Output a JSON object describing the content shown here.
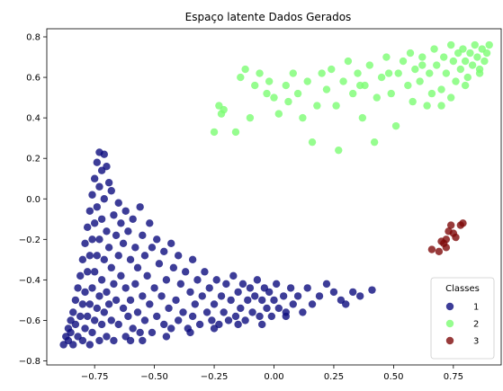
{
  "chart_data": {
    "type": "scatter",
    "title": "Espaço latente Dados Gerados",
    "xlabel": "",
    "ylabel": "",
    "xlim": [
      -0.95,
      0.95
    ],
    "ylim": [
      -0.82,
      0.84
    ],
    "x_ticks": [
      -0.75,
      -0.5,
      -0.25,
      0.0,
      0.25,
      0.5,
      0.75
    ],
    "x_tick_labels": [
      "−0.75",
      "−0.50",
      "−0.25",
      "0.00",
      "0.25",
      "0.50",
      "0.75"
    ],
    "y_ticks": [
      -0.8,
      -0.6,
      -0.4,
      -0.2,
      0.0,
      0.2,
      0.4,
      0.6,
      0.8
    ],
    "y_tick_labels": [
      "−0.8",
      "−0.6",
      "−0.4",
      "−0.2",
      "0.0",
      "0.2",
      "0.4",
      "0.6",
      "0.8"
    ],
    "grid": false,
    "legend": {
      "title": "Classes",
      "placement": "lower-right"
    },
    "series": [
      {
        "name": "1",
        "color": "#0d0d7e",
        "points": [
          [
            -0.88,
            -0.72
          ],
          [
            -0.87,
            -0.68
          ],
          [
            -0.86,
            -0.64
          ],
          [
            -0.86,
            -0.7
          ],
          [
            -0.85,
            -0.6
          ],
          [
            -0.85,
            -0.66
          ],
          [
            -0.84,
            -0.56
          ],
          [
            -0.84,
            -0.72
          ],
          [
            -0.83,
            -0.5
          ],
          [
            -0.83,
            -0.62
          ],
          [
            -0.82,
            -0.44
          ],
          [
            -0.82,
            -0.68
          ],
          [
            -0.81,
            -0.38
          ],
          [
            -0.81,
            -0.58
          ],
          [
            -0.8,
            -0.3
          ],
          [
            -0.8,
            -0.52
          ],
          [
            -0.8,
            -0.7
          ],
          [
            -0.79,
            -0.22
          ],
          [
            -0.79,
            -0.46
          ],
          [
            -0.79,
            -0.64
          ],
          [
            -0.78,
            -0.14
          ],
          [
            -0.78,
            -0.36
          ],
          [
            -0.78,
            -0.58
          ],
          [
            -0.77,
            -0.06
          ],
          [
            -0.77,
            -0.28
          ],
          [
            -0.77,
            -0.52
          ],
          [
            -0.77,
            -0.72
          ],
          [
            -0.76,
            0.02
          ],
          [
            -0.76,
            -0.2
          ],
          [
            -0.76,
            -0.44
          ],
          [
            -0.76,
            -0.66
          ],
          [
            -0.75,
            0.1
          ],
          [
            -0.75,
            -0.12
          ],
          [
            -0.75,
            -0.36
          ],
          [
            -0.75,
            -0.6
          ],
          [
            -0.74,
            0.18
          ],
          [
            -0.74,
            -0.04
          ],
          [
            -0.74,
            -0.28
          ],
          [
            -0.74,
            -0.54
          ],
          [
            -0.73,
            0.23
          ],
          [
            -0.73,
            0.06
          ],
          [
            -0.73,
            -0.2
          ],
          [
            -0.73,
            -0.48
          ],
          [
            -0.73,
            -0.7
          ],
          [
            -0.72,
            0.14
          ],
          [
            -0.72,
            -0.1
          ],
          [
            -0.72,
            -0.4
          ],
          [
            -0.72,
            -0.62
          ],
          [
            -0.71,
            0.22
          ],
          [
            -0.71,
            0.0
          ],
          [
            -0.71,
            -0.3
          ],
          [
            -0.71,
            -0.56
          ],
          [
            -0.7,
            0.16
          ],
          [
            -0.7,
            -0.16
          ],
          [
            -0.7,
            -0.46
          ],
          [
            -0.7,
            -0.68
          ],
          [
            -0.69,
            0.08
          ],
          [
            -0.69,
            -0.24
          ],
          [
            -0.69,
            -0.52
          ],
          [
            -0.68,
            0.04
          ],
          [
            -0.68,
            -0.34
          ],
          [
            -0.68,
            -0.6
          ],
          [
            -0.67,
            -0.08
          ],
          [
            -0.67,
            -0.42
          ],
          [
            -0.67,
            -0.7
          ],
          [
            -0.66,
            -0.18
          ],
          [
            -0.66,
            -0.5
          ],
          [
            -0.65,
            -0.02
          ],
          [
            -0.65,
            -0.28
          ],
          [
            -0.65,
            -0.62
          ],
          [
            -0.64,
            -0.12
          ],
          [
            -0.64,
            -0.38
          ],
          [
            -0.63,
            -0.22
          ],
          [
            -0.63,
            -0.54
          ],
          [
            -0.62,
            -0.06
          ],
          [
            -0.62,
            -0.44
          ],
          [
            -0.62,
            -0.68
          ],
          [
            -0.61,
            -0.16
          ],
          [
            -0.61,
            -0.58
          ],
          [
            -0.6,
            -0.3
          ],
          [
            -0.6,
            -0.5
          ],
          [
            -0.59,
            -0.1
          ],
          [
            -0.59,
            -0.64
          ],
          [
            -0.58,
            -0.24
          ],
          [
            -0.58,
            -0.42
          ],
          [
            -0.57,
            -0.34
          ],
          [
            -0.57,
            -0.56
          ],
          [
            -0.56,
            -0.04
          ],
          [
            -0.56,
            -0.66
          ],
          [
            -0.55,
            -0.18
          ],
          [
            -0.55,
            -0.48
          ],
          [
            -0.54,
            -0.28
          ],
          [
            -0.54,
            -0.6
          ],
          [
            -0.53,
            -0.38
          ],
          [
            -0.52,
            -0.12
          ],
          [
            -0.52,
            -0.52
          ],
          [
            -0.51,
            -0.24
          ],
          [
            -0.51,
            -0.66
          ],
          [
            -0.5,
            -0.44
          ],
          [
            -0.49,
            -0.2
          ],
          [
            -0.49,
            -0.58
          ],
          [
            -0.48,
            -0.32
          ],
          [
            -0.47,
            -0.48
          ],
          [
            -0.46,
            -0.26
          ],
          [
            -0.46,
            -0.62
          ],
          [
            -0.45,
            -0.4
          ],
          [
            -0.44,
            -0.54
          ],
          [
            -0.43,
            -0.22
          ],
          [
            -0.43,
            -0.64
          ],
          [
            -0.42,
            -0.34
          ],
          [
            -0.41,
            -0.5
          ],
          [
            -0.4,
            -0.28
          ],
          [
            -0.4,
            -0.6
          ],
          [
            -0.39,
            -0.42
          ],
          [
            -0.38,
            -0.56
          ],
          [
            -0.37,
            -0.36
          ],
          [
            -0.36,
            -0.64
          ],
          [
            -0.35,
            -0.46
          ],
          [
            -0.34,
            -0.3
          ],
          [
            -0.34,
            -0.58
          ],
          [
            -0.33,
            -0.52
          ],
          [
            -0.32,
            -0.4
          ],
          [
            -0.31,
            -0.62
          ],
          [
            -0.3,
            -0.48
          ],
          [
            -0.29,
            -0.36
          ],
          [
            -0.28,
            -0.56
          ],
          [
            -0.27,
            -0.44
          ],
          [
            -0.26,
            -0.6
          ],
          [
            -0.25,
            -0.52
          ],
          [
            -0.24,
            -0.4
          ],
          [
            -0.23,
            -0.62
          ],
          [
            -0.22,
            -0.48
          ],
          [
            -0.21,
            -0.56
          ],
          [
            -0.2,
            -0.42
          ],
          [
            -0.19,
            -0.6
          ],
          [
            -0.18,
            -0.5
          ],
          [
            -0.17,
            -0.38
          ],
          [
            -0.16,
            -0.58
          ],
          [
            -0.15,
            -0.46
          ],
          [
            -0.14,
            -0.54
          ],
          [
            -0.13,
            -0.42
          ],
          [
            -0.12,
            -0.6
          ],
          [
            -0.11,
            -0.5
          ],
          [
            -0.1,
            -0.44
          ],
          [
            -0.09,
            -0.56
          ],
          [
            -0.08,
            -0.48
          ],
          [
            -0.07,
            -0.4
          ],
          [
            -0.06,
            -0.58
          ],
          [
            -0.05,
            -0.5
          ],
          [
            -0.04,
            -0.44
          ],
          [
            -0.03,
            -0.54
          ],
          [
            -0.02,
            -0.46
          ],
          [
            -0.01,
            -0.58
          ],
          [
            0.0,
            -0.5
          ],
          [
            0.01,
            -0.42
          ],
          [
            0.02,
            -0.54
          ],
          [
            0.04,
            -0.48
          ],
          [
            0.05,
            -0.56
          ],
          [
            0.07,
            -0.44
          ],
          [
            0.08,
            -0.52
          ],
          [
            0.1,
            -0.48
          ],
          [
            0.12,
            -0.56
          ],
          [
            0.14,
            -0.44
          ],
          [
            0.16,
            -0.52
          ],
          [
            0.19,
            -0.48
          ],
          [
            0.22,
            -0.42
          ],
          [
            0.25,
            -0.46
          ],
          [
            0.28,
            -0.5
          ],
          [
            0.3,
            -0.52
          ],
          [
            0.33,
            -0.46
          ],
          [
            0.36,
            -0.48
          ],
          [
            0.41,
            -0.45
          ],
          [
            -0.6,
            -0.7
          ],
          [
            -0.55,
            -0.7
          ],
          [
            -0.45,
            -0.68
          ],
          [
            -0.35,
            -0.66
          ],
          [
            -0.25,
            -0.64
          ],
          [
            -0.15,
            -0.62
          ],
          [
            -0.05,
            -0.62
          ],
          [
            0.05,
            -0.58
          ]
        ]
      },
      {
        "name": "2",
        "color": "#7cfc73",
        "points": [
          [
            -0.25,
            0.33
          ],
          [
            -0.23,
            0.46
          ],
          [
            -0.22,
            0.42
          ],
          [
            -0.21,
            0.44
          ],
          [
            -0.16,
            0.33
          ],
          [
            -0.14,
            0.6
          ],
          [
            -0.12,
            0.64
          ],
          [
            -0.1,
            0.4
          ],
          [
            -0.08,
            0.56
          ],
          [
            -0.03,
            0.52
          ],
          [
            -0.02,
            0.58
          ],
          [
            0.0,
            0.5
          ],
          [
            0.02,
            0.42
          ],
          [
            0.05,
            0.56
          ],
          [
            0.08,
            0.62
          ],
          [
            0.1,
            0.52
          ],
          [
            0.12,
            0.4
          ],
          [
            0.14,
            0.58
          ],
          [
            0.16,
            0.28
          ],
          [
            0.18,
            0.46
          ],
          [
            0.2,
            0.62
          ],
          [
            0.22,
            0.54
          ],
          [
            0.24,
            0.64
          ],
          [
            0.26,
            0.46
          ],
          [
            0.27,
            0.24
          ],
          [
            0.29,
            0.58
          ],
          [
            0.31,
            0.68
          ],
          [
            0.33,
            0.52
          ],
          [
            0.35,
            0.62
          ],
          [
            0.37,
            0.4
          ],
          [
            0.38,
            0.56
          ],
          [
            0.4,
            0.66
          ],
          [
            0.42,
            0.28
          ],
          [
            0.43,
            0.5
          ],
          [
            0.45,
            0.6
          ],
          [
            0.47,
            0.7
          ],
          [
            0.49,
            0.52
          ],
          [
            0.51,
            0.36
          ],
          [
            0.52,
            0.62
          ],
          [
            0.54,
            0.68
          ],
          [
            0.56,
            0.56
          ],
          [
            0.57,
            0.72
          ],
          [
            0.59,
            0.64
          ],
          [
            0.61,
            0.58
          ],
          [
            0.62,
            0.7
          ],
          [
            0.64,
            0.46
          ],
          [
            0.65,
            0.62
          ],
          [
            0.67,
            0.74
          ],
          [
            0.68,
            0.66
          ],
          [
            0.7,
            0.54
          ],
          [
            0.71,
            0.7
          ],
          [
            0.72,
            0.62
          ],
          [
            0.74,
            0.76
          ],
          [
            0.75,
            0.68
          ],
          [
            0.76,
            0.58
          ],
          [
            0.77,
            0.72
          ],
          [
            0.78,
            0.64
          ],
          [
            0.79,
            0.74
          ],
          [
            0.8,
            0.68
          ],
          [
            0.81,
            0.6
          ],
          [
            0.82,
            0.72
          ],
          [
            0.83,
            0.66
          ],
          [
            0.84,
            0.76
          ],
          [
            0.85,
            0.7
          ],
          [
            0.86,
            0.64
          ],
          [
            0.87,
            0.74
          ],
          [
            0.88,
            0.68
          ],
          [
            0.89,
            0.72
          ],
          [
            0.9,
            0.76
          ],
          [
            0.86,
            0.62
          ],
          [
            0.74,
            0.5
          ],
          [
            0.66,
            0.52
          ],
          [
            0.58,
            0.48
          ],
          [
            0.48,
            0.62
          ],
          [
            0.36,
            0.56
          ],
          [
            0.06,
            0.48
          ],
          [
            -0.06,
            0.62
          ],
          [
            0.7,
            0.46
          ],
          [
            0.8,
            0.56
          ],
          [
            0.62,
            0.66
          ]
        ]
      },
      {
        "name": "3",
        "color": "#7e0a0a",
        "points": [
          [
            0.66,
            -0.25
          ],
          [
            0.69,
            -0.26
          ],
          [
            0.71,
            -0.22
          ],
          [
            0.72,
            -0.2
          ],
          [
            0.72,
            -0.24
          ],
          [
            0.74,
            -0.13
          ],
          [
            0.75,
            -0.17
          ],
          [
            0.76,
            -0.19
          ],
          [
            0.78,
            -0.13
          ],
          [
            0.79,
            -0.12
          ],
          [
            0.73,
            -0.16
          ],
          [
            0.7,
            -0.21
          ]
        ]
      }
    ]
  }
}
